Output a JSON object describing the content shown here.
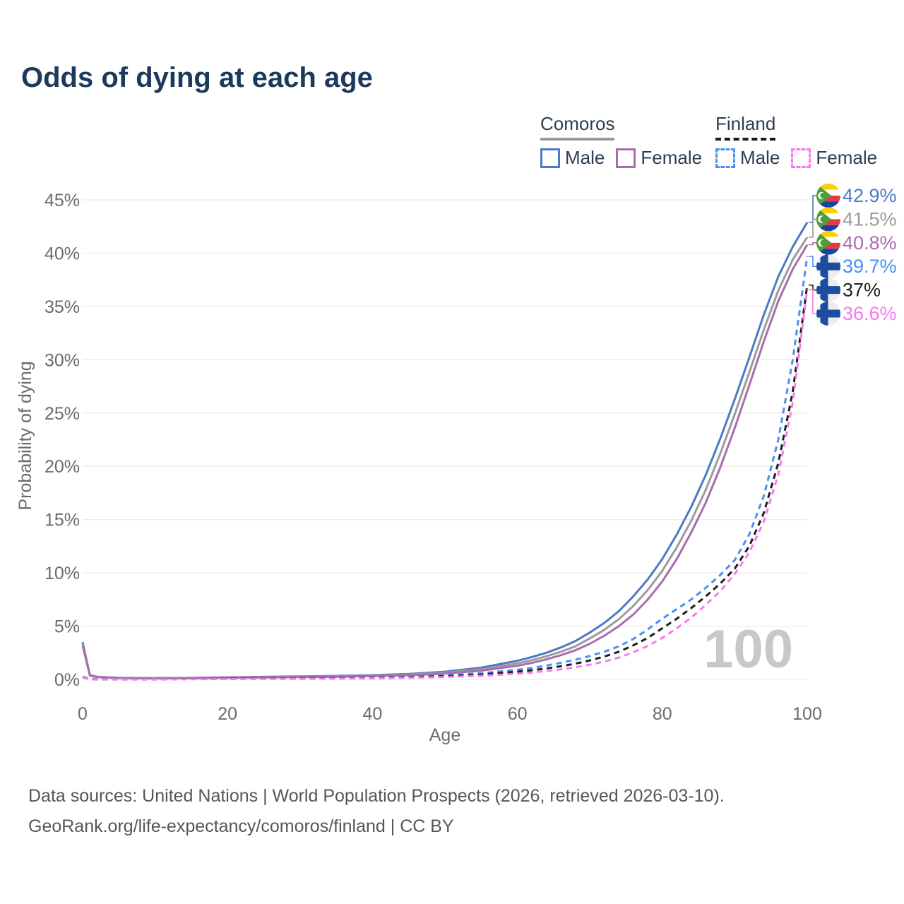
{
  "title": "Odds of dying at each age",
  "legend": {
    "groups": [
      {
        "label": "Comoros",
        "key_color": "#999999",
        "key_style": "solid",
        "items": [
          {
            "label": "Male",
            "color": "#4d7ac2",
            "dash": false
          },
          {
            "label": "Female",
            "color": "#aa6cae",
            "dash": false
          }
        ]
      },
      {
        "label": "Finland",
        "key_color": "#1a1a1a",
        "key_style": "dashed",
        "items": [
          {
            "label": "Male",
            "color": "#4b90f2",
            "dash": true
          },
          {
            "label": "Female",
            "color": "#fa78ee",
            "dash": true
          }
        ]
      }
    ]
  },
  "footer": {
    "line1": "Data sources: United Nations | World Population Prospects (2026, retrieved 2026-03-10).",
    "line2": "GeoRank.org/life-expectancy/comoros/finland | CC BY"
  },
  "chart_data": {
    "type": "line",
    "title": "Odds of dying at each age",
    "xlabel": "Age",
    "ylabel": "Probability of dying",
    "xlim": [
      0,
      100
    ],
    "ylim": [
      0,
      45
    ],
    "x_ticks": [
      0,
      20,
      40,
      60,
      80,
      100
    ],
    "y_ticks": [
      0,
      5,
      10,
      15,
      20,
      25,
      30,
      35,
      40,
      45
    ],
    "y_tick_suffix": "%",
    "grid": true,
    "grid_color": "#ebebeb",
    "tick_color": "#6b6b6b",
    "watermark": "100",
    "watermark_color": "#c8c8c8",
    "legend_position": "top-right",
    "series": [
      {
        "id": "comoros-male",
        "country": "Comoros",
        "sex": "male",
        "flag": "comoros",
        "color": "#4d7ac2",
        "dash": false,
        "end_label": "42.9%",
        "end_value": 42.9,
        "points": [
          [
            0,
            3.5
          ],
          [
            1,
            0.4
          ],
          [
            2,
            0.25
          ],
          [
            5,
            0.15
          ],
          [
            10,
            0.12
          ],
          [
            15,
            0.14
          ],
          [
            20,
            0.2
          ],
          [
            25,
            0.24
          ],
          [
            30,
            0.28
          ],
          [
            35,
            0.33
          ],
          [
            40,
            0.4
          ],
          [
            45,
            0.52
          ],
          [
            50,
            0.72
          ],
          [
            55,
            1.1
          ],
          [
            60,
            1.75
          ],
          [
            62,
            2.1
          ],
          [
            64,
            2.5
          ],
          [
            66,
            3.0
          ],
          [
            68,
            3.6
          ],
          [
            70,
            4.4
          ],
          [
            72,
            5.3
          ],
          [
            74,
            6.4
          ],
          [
            76,
            7.8
          ],
          [
            78,
            9.4
          ],
          [
            80,
            11.3
          ],
          [
            82,
            13.6
          ],
          [
            84,
            16.2
          ],
          [
            86,
            19.2
          ],
          [
            88,
            22.6
          ],
          [
            90,
            26.3
          ],
          [
            92,
            30.2
          ],
          [
            94,
            34.2
          ],
          [
            96,
            37.8
          ],
          [
            98,
            40.6
          ],
          [
            100,
            42.9
          ]
        ]
      },
      {
        "id": "comoros-all",
        "country": "Comoros",
        "sex": "all",
        "flag": "comoros",
        "color": "#9b9b9b",
        "dash": false,
        "end_label": "41.5%",
        "end_value": 41.5,
        "points": [
          [
            0,
            3.35
          ],
          [
            1,
            0.37
          ],
          [
            2,
            0.23
          ],
          [
            5,
            0.14
          ],
          [
            10,
            0.11
          ],
          [
            15,
            0.13
          ],
          [
            20,
            0.18
          ],
          [
            25,
            0.21
          ],
          [
            30,
            0.25
          ],
          [
            35,
            0.29
          ],
          [
            40,
            0.36
          ],
          [
            45,
            0.46
          ],
          [
            50,
            0.63
          ],
          [
            55,
            0.95
          ],
          [
            60,
            1.5
          ],
          [
            62,
            1.8
          ],
          [
            64,
            2.17
          ],
          [
            66,
            2.6
          ],
          [
            68,
            3.1
          ],
          [
            70,
            3.85
          ],
          [
            72,
            4.65
          ],
          [
            74,
            5.65
          ],
          [
            76,
            6.9
          ],
          [
            78,
            8.4
          ],
          [
            80,
            10.2
          ],
          [
            82,
            12.4
          ],
          [
            84,
            14.9
          ],
          [
            86,
            17.8
          ],
          [
            88,
            21.2
          ],
          [
            90,
            24.9
          ],
          [
            92,
            28.8
          ],
          [
            94,
            32.8
          ],
          [
            96,
            36.5
          ],
          [
            98,
            39.4
          ],
          [
            100,
            41.5
          ]
        ]
      },
      {
        "id": "comoros-female",
        "country": "Comoros",
        "sex": "female",
        "flag": "comoros",
        "color": "#aa6cae",
        "dash": false,
        "end_label": "40.8%",
        "end_value": 40.8,
        "points": [
          [
            0,
            3.2
          ],
          [
            1,
            0.35
          ],
          [
            2,
            0.21
          ],
          [
            5,
            0.13
          ],
          [
            10,
            0.1
          ],
          [
            15,
            0.12
          ],
          [
            20,
            0.16
          ],
          [
            25,
            0.18
          ],
          [
            30,
            0.21
          ],
          [
            35,
            0.25
          ],
          [
            40,
            0.31
          ],
          [
            45,
            0.4
          ],
          [
            50,
            0.55
          ],
          [
            55,
            0.82
          ],
          [
            60,
            1.28
          ],
          [
            62,
            1.55
          ],
          [
            64,
            1.88
          ],
          [
            66,
            2.27
          ],
          [
            68,
            2.74
          ],
          [
            70,
            3.35
          ],
          [
            72,
            4.1
          ],
          [
            74,
            5.0
          ],
          [
            76,
            6.1
          ],
          [
            78,
            7.5
          ],
          [
            80,
            9.2
          ],
          [
            82,
            11.3
          ],
          [
            84,
            13.8
          ],
          [
            86,
            16.6
          ],
          [
            88,
            19.9
          ],
          [
            90,
            23.6
          ],
          [
            92,
            27.6
          ],
          [
            94,
            31.7
          ],
          [
            96,
            35.5
          ],
          [
            98,
            38.5
          ],
          [
            100,
            40.8
          ]
        ]
      },
      {
        "id": "finland-male",
        "country": "Finland",
        "sex": "male",
        "flag": "finland",
        "color": "#4b90f2",
        "dash": true,
        "end_label": "39.7%",
        "end_value": 39.7,
        "points": [
          [
            0,
            0.25
          ],
          [
            1,
            0.03
          ],
          [
            2,
            0.02
          ],
          [
            5,
            0.02
          ],
          [
            10,
            0.02
          ],
          [
            15,
            0.04
          ],
          [
            20,
            0.06
          ],
          [
            25,
            0.08
          ],
          [
            30,
            0.1
          ],
          [
            35,
            0.13
          ],
          [
            40,
            0.17
          ],
          [
            45,
            0.26
          ],
          [
            50,
            0.38
          ],
          [
            55,
            0.58
          ],
          [
            60,
            0.9
          ],
          [
            62,
            1.08
          ],
          [
            64,
            1.3
          ],
          [
            66,
            1.56
          ],
          [
            68,
            1.85
          ],
          [
            70,
            2.2
          ],
          [
            72,
            2.6
          ],
          [
            74,
            3.1
          ],
          [
            76,
            3.8
          ],
          [
            78,
            4.7
          ],
          [
            80,
            5.7
          ],
          [
            82,
            6.6
          ],
          [
            84,
            7.5
          ],
          [
            86,
            8.6
          ],
          [
            88,
            9.8
          ],
          [
            90,
            11.2
          ],
          [
            92,
            13.6
          ],
          [
            94,
            17.2
          ],
          [
            96,
            22.5
          ],
          [
            98,
            30.0
          ],
          [
            100,
            39.7
          ]
        ]
      },
      {
        "id": "finland-all",
        "country": "Finland",
        "sex": "all",
        "flag": "finland",
        "color": "#1f1f1f",
        "dash": true,
        "end_label": "37%",
        "end_value": 37,
        "points": [
          [
            0,
            0.22
          ],
          [
            1,
            0.025
          ],
          [
            2,
            0.018
          ],
          [
            5,
            0.015
          ],
          [
            10,
            0.015
          ],
          [
            15,
            0.03
          ],
          [
            20,
            0.05
          ],
          [
            25,
            0.065
          ],
          [
            30,
            0.08
          ],
          [
            35,
            0.11
          ],
          [
            40,
            0.14
          ],
          [
            45,
            0.21
          ],
          [
            50,
            0.3
          ],
          [
            55,
            0.46
          ],
          [
            60,
            0.72
          ],
          [
            62,
            0.86
          ],
          [
            64,
            1.03
          ],
          [
            66,
            1.24
          ],
          [
            68,
            1.48
          ],
          [
            70,
            1.78
          ],
          [
            72,
            2.15
          ],
          [
            74,
            2.6
          ],
          [
            76,
            3.2
          ],
          [
            78,
            3.9
          ],
          [
            80,
            4.8
          ],
          [
            82,
            5.7
          ],
          [
            84,
            6.7
          ],
          [
            86,
            7.8
          ],
          [
            88,
            9.0
          ],
          [
            90,
            10.4
          ],
          [
            92,
            12.5
          ],
          [
            94,
            15.6
          ],
          [
            96,
            20.3
          ],
          [
            98,
            27.0
          ],
          [
            100,
            37.0
          ]
        ]
      },
      {
        "id": "finland-female",
        "country": "Finland",
        "sex": "female",
        "flag": "finland",
        "color": "#fa78ee",
        "dash": true,
        "end_label": "36.6%",
        "end_value": 36.6,
        "points": [
          [
            0,
            0.2
          ],
          [
            1,
            0.02
          ],
          [
            2,
            0.015
          ],
          [
            5,
            0.012
          ],
          [
            10,
            0.012
          ],
          [
            15,
            0.02
          ],
          [
            20,
            0.03
          ],
          [
            25,
            0.04
          ],
          [
            30,
            0.05
          ],
          [
            35,
            0.07
          ],
          [
            40,
            0.1
          ],
          [
            45,
            0.15
          ],
          [
            50,
            0.22
          ],
          [
            55,
            0.34
          ],
          [
            60,
            0.54
          ],
          [
            62,
            0.65
          ],
          [
            64,
            0.79
          ],
          [
            66,
            0.95
          ],
          [
            68,
            1.14
          ],
          [
            70,
            1.38
          ],
          [
            72,
            1.68
          ],
          [
            74,
            2.05
          ],
          [
            76,
            2.55
          ],
          [
            78,
            3.15
          ],
          [
            80,
            3.9
          ],
          [
            82,
            4.8
          ],
          [
            84,
            5.8
          ],
          [
            86,
            7.0
          ],
          [
            88,
            8.3
          ],
          [
            90,
            9.9
          ],
          [
            92,
            11.9
          ],
          [
            94,
            14.8
          ],
          [
            96,
            19.2
          ],
          [
            98,
            26.0
          ],
          [
            100,
            36.6
          ]
        ]
      }
    ]
  }
}
